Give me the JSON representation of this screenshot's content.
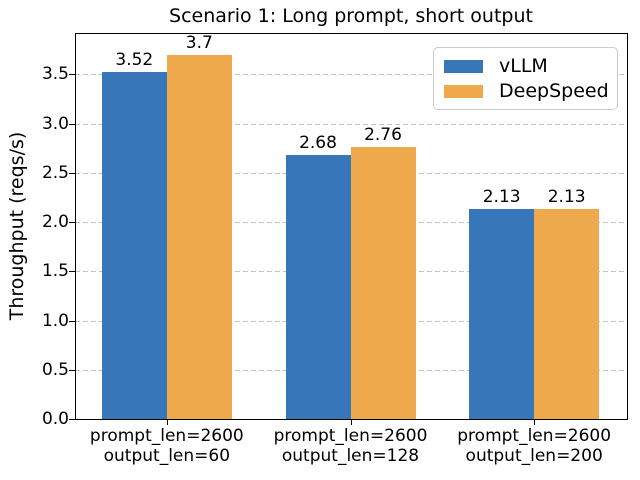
{
  "chart_data": {
    "type": "bar",
    "title": "Scenario 1: Long prompt, short output",
    "ylabel": "Throughput (reqs/s)",
    "xlabel": "",
    "categories": [
      "prompt_len=2600\noutput_len=60",
      "prompt_len=2600\noutput_len=128",
      "prompt_len=2600\noutput_len=200"
    ],
    "series": [
      {
        "name": "vLLM",
        "color": "#3776b9",
        "values": [
          3.52,
          2.68,
          2.13
        ]
      },
      {
        "name": "DeepSpeed",
        "color": "#eda94c",
        "values": [
          3.7,
          2.76,
          2.13
        ]
      }
    ],
    "bar_value_labels": [
      "3.52",
      "3.7",
      "2.68",
      "2.76",
      "2.13",
      "2.13"
    ],
    "yticks": [
      0.0,
      0.5,
      1.0,
      1.5,
      2.0,
      2.5,
      3.0,
      3.5
    ],
    "ylim": [
      0,
      3.92
    ],
    "grid": {
      "axis": "y",
      "linestyle": "dashed",
      "color": "#c3c3c3"
    },
    "legend": {
      "position": "upper right",
      "entries": [
        "vLLM",
        "DeepSpeed"
      ]
    }
  }
}
